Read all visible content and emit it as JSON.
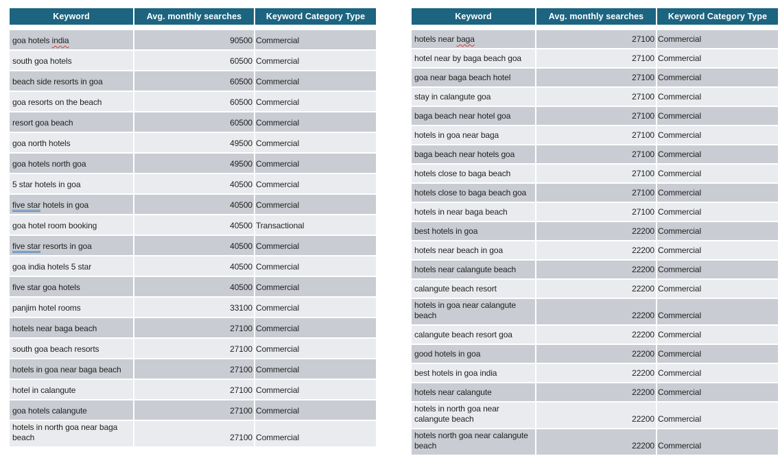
{
  "colors": {
    "header_background": "#1c6480",
    "header_text": "#ffffff",
    "row_shade_dark": "#c9ccd2",
    "row_shade_light": "#e9ebee",
    "body_text": "#1e1e1e",
    "spellcheck_underline": "#cf3a30",
    "grammar_underline": "#4a7ebb",
    "page_background": "#ffffff"
  },
  "tables": [
    {
      "id": "left",
      "columns": [
        "Keyword",
        "Avg. monthly searches",
        "Keyword Category Type"
      ],
      "rows": [
        {
          "keyword_segments": [
            [
              "goa hotels ",
              "plain"
            ],
            [
              "india",
              "spell"
            ]
          ],
          "searches": "90500",
          "category": "Commercial"
        },
        {
          "keyword_segments": [
            [
              "south goa hotels",
              "plain"
            ]
          ],
          "searches": "60500",
          "category": "Commercial"
        },
        {
          "keyword_segments": [
            [
              "beach side resorts in goa",
              "plain"
            ]
          ],
          "searches": "60500",
          "category": "Commercial"
        },
        {
          "keyword_segments": [
            [
              "goa resorts on the beach",
              "plain"
            ]
          ],
          "searches": "60500",
          "category": "Commercial"
        },
        {
          "keyword_segments": [
            [
              "resort goa beach",
              "plain"
            ]
          ],
          "searches": "60500",
          "category": "Commercial"
        },
        {
          "keyword_segments": [
            [
              "goa north hotels",
              "plain"
            ]
          ],
          "searches": "49500",
          "category": "Commercial"
        },
        {
          "keyword_segments": [
            [
              "goa hotels north goa",
              "plain"
            ]
          ],
          "searches": "49500",
          "category": "Commercial"
        },
        {
          "keyword_segments": [
            [
              "5 star hotels in goa",
              "plain"
            ]
          ],
          "searches": "40500",
          "category": "Commercial"
        },
        {
          "keyword_segments": [
            [
              "five star",
              "grammar"
            ],
            [
              " hotels in goa",
              "plain"
            ]
          ],
          "searches": "40500",
          "category": "Commercial"
        },
        {
          "keyword_segments": [
            [
              "goa hotel room booking",
              "plain"
            ]
          ],
          "searches": "40500",
          "category": "Transactional"
        },
        {
          "keyword_segments": [
            [
              "five star",
              "grammar"
            ],
            [
              " resorts in goa",
              "plain"
            ]
          ],
          "searches": "40500",
          "category": "Commercial"
        },
        {
          "keyword_segments": [
            [
              "goa india hotels 5 star",
              "plain"
            ]
          ],
          "searches": "40500",
          "category": "Commercial"
        },
        {
          "keyword_segments": [
            [
              "five star goa hotels",
              "plain"
            ]
          ],
          "searches": "40500",
          "category": "Commercial"
        },
        {
          "keyword_segments": [
            [
              "panjim hotel rooms",
              "plain"
            ]
          ],
          "searches": "33100",
          "category": "Commercial"
        },
        {
          "keyword_segments": [
            [
              "hotels near baga beach",
              "plain"
            ]
          ],
          "searches": "27100",
          "category": "Commercial"
        },
        {
          "keyword_segments": [
            [
              "south goa beach resorts",
              "plain"
            ]
          ],
          "searches": "27100",
          "category": "Commercial"
        },
        {
          "keyword_segments": [
            [
              "hotels in goa near baga beach",
              "plain"
            ]
          ],
          "searches": "27100",
          "category": "Commercial"
        },
        {
          "keyword_segments": [
            [
              "hotel in calangute",
              "plain"
            ]
          ],
          "searches": "27100",
          "category": "Commercial"
        },
        {
          "keyword_segments": [
            [
              "goa hotels calangute",
              "plain"
            ]
          ],
          "searches": "27100",
          "category": "Commercial"
        },
        {
          "keyword_segments": [
            [
              "hotels in north goa near baga beach",
              "plain"
            ]
          ],
          "searches": "27100",
          "category": "Commercial"
        }
      ]
    },
    {
      "id": "right",
      "columns": [
        "Keyword",
        "Avg. monthly searches",
        "Keyword Category Type"
      ],
      "rows": [
        {
          "keyword_segments": [
            [
              "hotels near ",
              "plain"
            ],
            [
              "baga",
              "spell"
            ]
          ],
          "searches": "27100",
          "category": "Commercial"
        },
        {
          "keyword_segments": [
            [
              "hotel near by baga beach goa",
              "plain"
            ]
          ],
          "searches": "27100",
          "category": "Commercial"
        },
        {
          "keyword_segments": [
            [
              "goa near baga beach hotel",
              "plain"
            ]
          ],
          "searches": "27100",
          "category": "Commercial"
        },
        {
          "keyword_segments": [
            [
              "stay in calangute goa",
              "plain"
            ]
          ],
          "searches": "27100",
          "category": "Commercial"
        },
        {
          "keyword_segments": [
            [
              "baga beach near hotel goa",
              "plain"
            ]
          ],
          "searches": "27100",
          "category": "Commercial"
        },
        {
          "keyword_segments": [
            [
              "hotels in goa near baga",
              "plain"
            ]
          ],
          "searches": "27100",
          "category": "Commercial"
        },
        {
          "keyword_segments": [
            [
              "baga beach near hotels goa",
              "plain"
            ]
          ],
          "searches": "27100",
          "category": "Commercial"
        },
        {
          "keyword_segments": [
            [
              "hotels close to baga beach",
              "plain"
            ]
          ],
          "searches": "27100",
          "category": "Commercial"
        },
        {
          "keyword_segments": [
            [
              "hotels close to baga beach goa",
              "plain"
            ]
          ],
          "searches": "27100",
          "category": "Commercial"
        },
        {
          "keyword_segments": [
            [
              "hotels in near baga beach",
              "plain"
            ]
          ],
          "searches": "27100",
          "category": "Commercial"
        },
        {
          "keyword_segments": [
            [
              "best hotels in goa",
              "plain"
            ]
          ],
          "searches": "22200",
          "category": "Commercial"
        },
        {
          "keyword_segments": [
            [
              "hotels near beach in goa",
              "plain"
            ]
          ],
          "searches": "22200",
          "category": "Commercial"
        },
        {
          "keyword_segments": [
            [
              "hotels near calangute beach",
              "plain"
            ]
          ],
          "searches": "22200",
          "category": "Commercial"
        },
        {
          "keyword_segments": [
            [
              "calangute beach resort",
              "plain"
            ]
          ],
          "searches": "22200",
          "category": "Commercial"
        },
        {
          "keyword_segments": [
            [
              "hotels in goa near calangute beach",
              "plain"
            ]
          ],
          "searches": "22200",
          "category": "Commercial"
        },
        {
          "keyword_segments": [
            [
              "calangute beach resort goa",
              "plain"
            ]
          ],
          "searches": "22200",
          "category": "Commercial"
        },
        {
          "keyword_segments": [
            [
              "good hotels in goa",
              "plain"
            ]
          ],
          "searches": "22200",
          "category": "Commercial"
        },
        {
          "keyword_segments": [
            [
              "best hotels in goa india",
              "plain"
            ]
          ],
          "searches": "22200",
          "category": "Commercial"
        },
        {
          "keyword_segments": [
            [
              "hotels near calangute",
              "plain"
            ]
          ],
          "searches": "22200",
          "category": "Commercial"
        },
        {
          "keyword_segments": [
            [
              "hotels in north goa near calangute beach",
              "plain"
            ]
          ],
          "searches": "22200",
          "category": "Commercial"
        },
        {
          "keyword_segments": [
            [
              "hotels north goa near calangute beach",
              "plain"
            ]
          ],
          "searches": "22200",
          "category": "Commercial"
        }
      ]
    }
  ]
}
